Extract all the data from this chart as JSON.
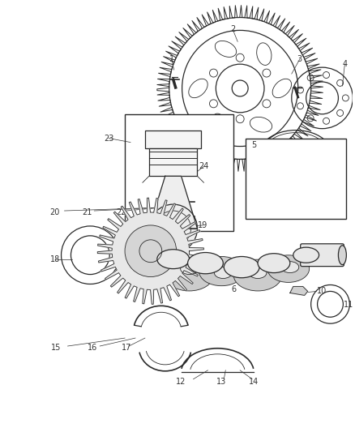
{
  "bg_color": "#ffffff",
  "line_color": "#2a2a2a",
  "label_color": "#333333",
  "fig_width": 4.38,
  "fig_height": 5.33,
  "dpi": 100
}
